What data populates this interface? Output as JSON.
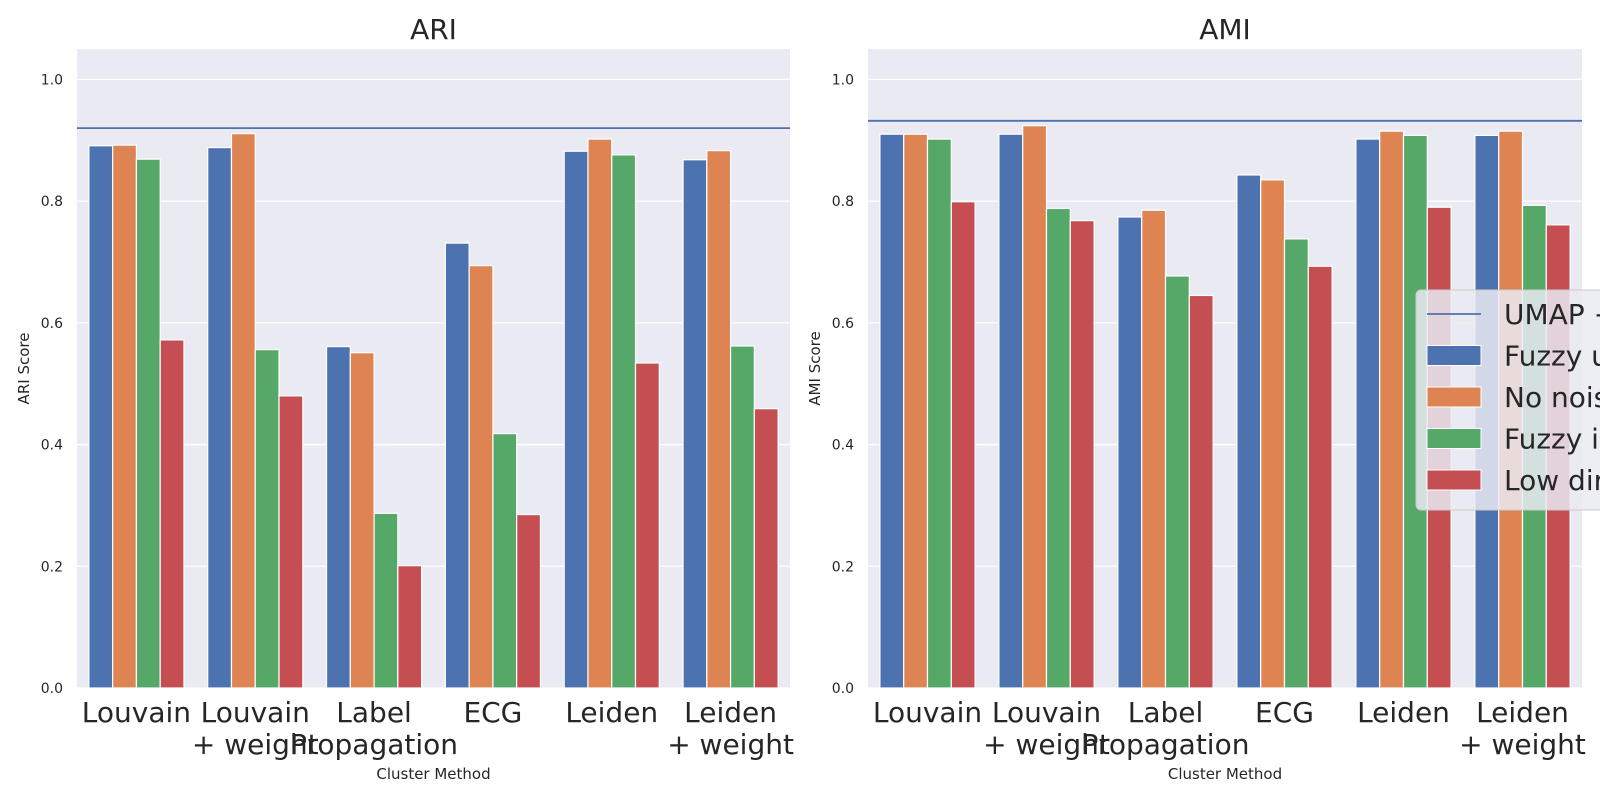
{
  "chart_data": [
    {
      "type": "bar",
      "title": "ARI",
      "xlabel": "Cluster Method",
      "ylabel": "ARI Score",
      "ylim": [
        0,
        1.05
      ],
      "yticks": [
        "0.0",
        "0.2",
        "0.4",
        "0.6",
        "0.8",
        "1.0"
      ],
      "categories": [
        "Louvain",
        "Louvain\n+ weight",
        "Label\nPropagation",
        "ECG",
        "Leiden",
        "Leiden\n+ weight"
      ],
      "reference_line": 0.92,
      "series": [
        {
          "values": [
            0.891,
            0.888,
            0.561,
            0.731,
            0.882,
            0.868
          ]
        },
        {
          "values": [
            0.892,
            0.911,
            0.551,
            0.694,
            0.902,
            0.883
          ]
        },
        {
          "values": [
            0.869,
            0.556,
            0.287,
            0.418,
            0.876,
            0.562
          ]
        },
        {
          "values": [
            0.572,
            0.48,
            0.201,
            0.285,
            0.534,
            0.459
          ]
        }
      ]
    },
    {
      "type": "bar",
      "title": "AMI",
      "xlabel": "Cluster Method",
      "ylabel": "AMI Score",
      "ylim": [
        0,
        1.05
      ],
      "yticks": [
        "0.0",
        "0.2",
        "0.4",
        "0.6",
        "0.8",
        "1.0"
      ],
      "categories": [
        "Louvain",
        "Louvain\n+ weight",
        "Label\nPropagation",
        "ECG",
        "Leiden",
        "Leiden\n+ weight"
      ],
      "reference_line": 0.932,
      "series": [
        {
          "values": [
            0.91,
            0.91,
            0.774,
            0.843,
            0.902,
            0.908
          ]
        },
        {
          "values": [
            0.91,
            0.924,
            0.785,
            0.835,
            0.915,
            0.915
          ]
        },
        {
          "values": [
            0.902,
            0.788,
            0.677,
            0.738,
            0.908,
            0.793
          ]
        },
        {
          "values": [
            0.799,
            0.768,
            0.645,
            0.693,
            0.79,
            0.761
          ]
        }
      ]
    }
  ],
  "legend": {
    "placement": "right, clipped at image edge",
    "entries": [
      {
        "label": "UMAP +",
        "kind": "line"
      },
      {
        "label": "Fuzzy u",
        "kind": "patch"
      },
      {
        "label": "No nois",
        "kind": "patch"
      },
      {
        "label": "Fuzzy i",
        "kind": "patch"
      },
      {
        "label": "Low dir",
        "kind": "patch"
      }
    ]
  },
  "colors": {
    "series": [
      "#4c72b0",
      "#dd8452",
      "#55a868",
      "#c44e52"
    ],
    "reference_line": "#4c72b0",
    "plot_background": "#eaeaf2",
    "grid": "#ffffff"
  }
}
